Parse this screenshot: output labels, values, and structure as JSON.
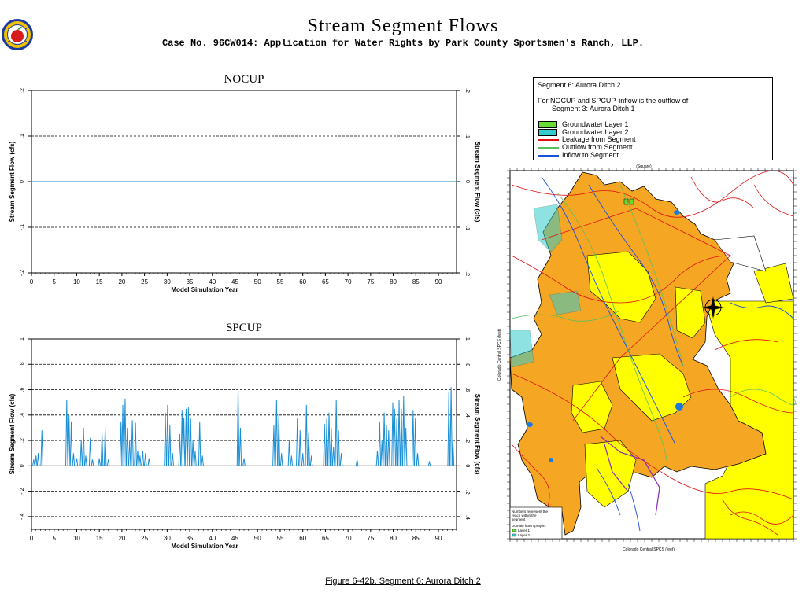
{
  "header": {
    "title": "Stream Segment Flows",
    "subtitle": "Case No. 96CW014: Application for Water Rights by Park County Sportsmen's Ranch, LLP.",
    "caption": "Figure 6-42b.  Segment 6: Aurora Ditch 2"
  },
  "colors": {
    "flow_line": "#1a8fd6",
    "map_orange": "#f5a623",
    "map_yellow": "#ffff00",
    "stream_red": "#e01010",
    "stream_green": "#5cc05c",
    "stream_blue": "#1a4fd6",
    "gw_layer1": "#66dd33",
    "gw_layer2": "#33cccc"
  },
  "legend": {
    "heading": "Segment 6: Aurora Ditch 2",
    "note_line1": "For NOCUP and SPCUP, inflow is the outflow of",
    "note_line2": "Segment    3: Aurora Ditch 1",
    "items": [
      {
        "label": "Groundwater Layer 1",
        "kind": "box",
        "color": "#66dd33"
      },
      {
        "label": "Groundwater Layer 2",
        "kind": "box",
        "color": "#33cccc"
      },
      {
        "label": "Leakage from Segment",
        "kind": "line",
        "color": "#e01010"
      },
      {
        "label": "Outflow from Segment",
        "kind": "line",
        "color": "#5cc05c"
      },
      {
        "label": "Inflow to Segment",
        "kind": "line",
        "color": "#1a4fd6"
      }
    ]
  },
  "map": {
    "top_label": "(Square)",
    "left_label": "Colorado Central SPCS (feet)",
    "bottom_label": "Colorado Central SPCS (feet)",
    "note_line1": "Numbers represent the",
    "note_line2": "reach within the",
    "note_line3": "segment",
    "note_line4": "Domain from spraylin.",
    "note_layer1": "Layer 1",
    "note_layer2": "Layer 2"
  },
  "chart_data": [
    {
      "type": "line",
      "title": "NOCUP",
      "xlabel": "Model Simulation Year",
      "ylabel": "Stream Segment Flow (cfs)",
      "xlim": [
        0,
        94
      ],
      "ylim": [
        -0.2,
        0.2
      ],
      "x_ticks": [
        "0",
        "5",
        "10",
        "15",
        "20",
        "25",
        "30",
        "35",
        "40",
        "45",
        "50",
        "55",
        "60",
        "65",
        "70",
        "75",
        "80",
        "85",
        "90"
      ],
      "y_ticks": [
        ".2",
        ".1",
        "0",
        "-.1",
        "-.2"
      ],
      "y_tick_values": [
        0.2,
        0.1,
        0,
        -0.1,
        -0.2
      ],
      "dashed_grid": [
        0.1,
        -0.1
      ],
      "zero_line": true,
      "series": [
        {
          "color": "#1a8fd6",
          "x": [
            0,
            94
          ],
          "values": [
            0,
            0
          ]
        }
      ]
    },
    {
      "type": "line",
      "title": "SPCUP",
      "xlabel": "Model Simulation Year",
      "ylabel": "Stream Segment Flow (cfs)",
      "xlim": [
        0,
        94
      ],
      "ylim": [
        -0.5,
        1.0
      ],
      "x_ticks": [
        "0",
        "5",
        "10",
        "15",
        "20",
        "25",
        "30",
        "35",
        "40",
        "45",
        "50",
        "55",
        "60",
        "65",
        "70",
        "75",
        "80",
        "85",
        "90"
      ],
      "y_ticks": [
        "1",
        ".8",
        ".6",
        ".4",
        ".2",
        "0",
        "-.2",
        "-.4"
      ],
      "y_tick_values": [
        1.0,
        0.8,
        0.6,
        0.4,
        0.2,
        0,
        -0.2,
        -0.4
      ],
      "dashed_grid": [
        0.8,
        0.6,
        0.4,
        0.2,
        -0.2,
        -0.4
      ],
      "zero_line": true,
      "series": [
        {
          "color": "#1a8fd6",
          "peaks": [
            [
              0.5,
              0.05
            ],
            [
              1.0,
              0.08
            ],
            [
              1.5,
              0.1
            ],
            [
              2.3,
              0.28
            ],
            [
              7.8,
              0.52
            ],
            [
              8.3,
              0.4
            ],
            [
              8.8,
              0.35
            ],
            [
              9.3,
              0.1
            ],
            [
              10.0,
              0.06
            ],
            [
              11.0,
              0.2
            ],
            [
              11.5,
              0.3
            ],
            [
              12.0,
              0.08
            ],
            [
              13.0,
              0.22
            ],
            [
              13.5,
              0.05
            ],
            [
              15.0,
              0.06
            ],
            [
              15.6,
              0.26
            ],
            [
              16.3,
              0.3
            ],
            [
              17.0,
              0.05
            ],
            [
              19.8,
              0.35
            ],
            [
              20.2,
              0.48
            ],
            [
              20.7,
              0.53
            ],
            [
              21.2,
              0.3
            ],
            [
              21.7,
              0.2
            ],
            [
              22.3,
              0.36
            ],
            [
              23.0,
              0.34
            ],
            [
              23.5,
              0.12
            ],
            [
              24.0,
              0.08
            ],
            [
              24.6,
              0.12
            ],
            [
              25.2,
              0.1
            ],
            [
              26.0,
              0.06
            ],
            [
              29.6,
              0.42
            ],
            [
              30.1,
              0.48
            ],
            [
              30.6,
              0.32
            ],
            [
              31.2,
              0.1
            ],
            [
              32.8,
              0.25
            ],
            [
              33.3,
              0.44
            ],
            [
              33.7,
              0.38
            ],
            [
              34.2,
              0.45
            ],
            [
              34.7,
              0.46
            ],
            [
              35.2,
              0.38
            ],
            [
              35.7,
              0.2
            ],
            [
              36.2,
              0.12
            ],
            [
              37.2,
              0.35
            ],
            [
              37.8,
              0.08
            ],
            [
              45.7,
              0.61
            ],
            [
              46.2,
              0.3
            ],
            [
              47.0,
              0.06
            ],
            [
              53.6,
              0.32
            ],
            [
              54.2,
              0.52
            ],
            [
              54.7,
              0.4
            ],
            [
              55.3,
              0.1
            ],
            [
              57.0,
              0.2
            ],
            [
              57.5,
              0.08
            ],
            [
              58.8,
              0.38
            ],
            [
              59.4,
              0.28
            ],
            [
              60.0,
              0.1
            ],
            [
              60.8,
              0.48
            ],
            [
              61.3,
              0.26
            ],
            [
              61.9,
              0.08
            ],
            [
              64.8,
              0.33
            ],
            [
              65.3,
              0.38
            ],
            [
              65.8,
              0.42
            ],
            [
              66.3,
              0.3
            ],
            [
              66.8,
              0.15
            ],
            [
              67.4,
              0.52
            ],
            [
              67.9,
              0.28
            ],
            [
              68.5,
              0.1
            ],
            [
              72.0,
              0.05
            ],
            [
              76.5,
              0.12
            ],
            [
              77.0,
              0.35
            ],
            [
              77.5,
              0.2
            ],
            [
              78.0,
              0.42
            ],
            [
              78.5,
              0.32
            ],
            [
              79.0,
              0.28
            ],
            [
              79.9,
              0.5
            ],
            [
              80.3,
              0.45
            ],
            [
              80.8,
              0.38
            ],
            [
              81.3,
              0.52
            ],
            [
              81.8,
              0.45
            ],
            [
              82.3,
              0.55
            ],
            [
              82.8,
              0.3
            ],
            [
              84.4,
              0.44
            ],
            [
              84.9,
              0.38
            ],
            [
              85.4,
              0.1
            ],
            [
              88.0,
              0.03
            ],
            [
              92.3,
              0.58
            ],
            [
              92.8,
              0.62
            ],
            [
              93.2,
              0.2
            ]
          ]
        }
      ]
    }
  ]
}
